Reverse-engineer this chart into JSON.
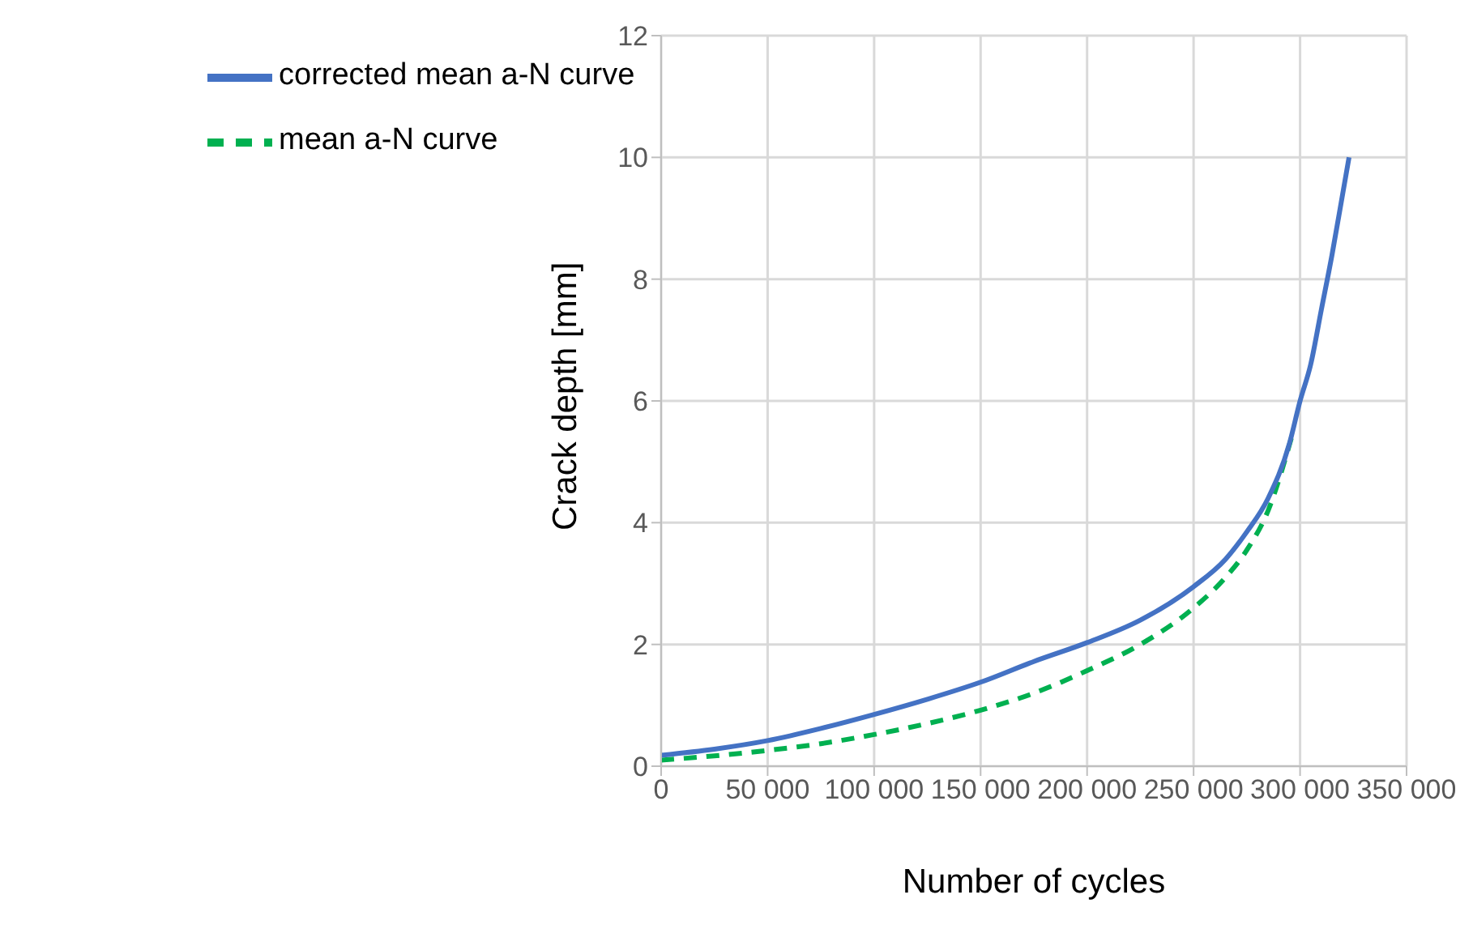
{
  "chart_data": {
    "type": "line",
    "xlabel": "Number of cycles",
    "ylabel": "Crack depth [mm]",
    "xlim": [
      0,
      350000
    ],
    "ylim": [
      0,
      12
    ],
    "xticks": [
      0,
      {
        "value": 50000,
        "label": "50 000"
      },
      {
        "value": 100000,
        "label": "100 000"
      },
      {
        "value": 150000,
        "label": "150 000"
      },
      {
        "value": 200000,
        "label": "200 000"
      },
      {
        "value": 250000,
        "label": "250 000"
      },
      {
        "value": 300000,
        "label": "300 000"
      },
      {
        "value": 350000,
        "label": "350 000"
      }
    ],
    "yticks": [
      0,
      2,
      4,
      6,
      8,
      10,
      12
    ],
    "grid": true,
    "legend": "top left",
    "marker": "none",
    "series": [
      {
        "name": "mean a-N curve",
        "color": "#00b050",
        "line_style": "dashed",
        "x": [
          0,
          25000,
          50000,
          75000,
          100000,
          125000,
          150000,
          175000,
          200000,
          225000,
          250000,
          265000,
          275000,
          285000,
          296000
        ],
        "values": [
          0.1,
          0.17,
          0.26,
          0.37,
          0.52,
          0.7,
          0.92,
          1.2,
          1.57,
          2.0,
          2.6,
          3.1,
          3.55,
          4.2,
          5.4
        ]
      },
      {
        "name": "corrected mean a-N curve",
        "color": "#4472c4",
        "line_style": "solid",
        "x": [
          0,
          25000,
          50000,
          75000,
          100000,
          125000,
          150000,
          175000,
          200000,
          225000,
          250000,
          265000,
          275000,
          285000,
          295000,
          300000,
          305000,
          310000,
          315000,
          320000,
          323000
        ],
        "values": [
          0.18,
          0.28,
          0.42,
          0.62,
          0.85,
          1.1,
          1.38,
          1.72,
          2.03,
          2.4,
          2.95,
          3.4,
          3.85,
          4.4,
          5.3,
          6.0,
          6.6,
          7.5,
          8.4,
          9.4,
          10
        ]
      }
    ]
  }
}
